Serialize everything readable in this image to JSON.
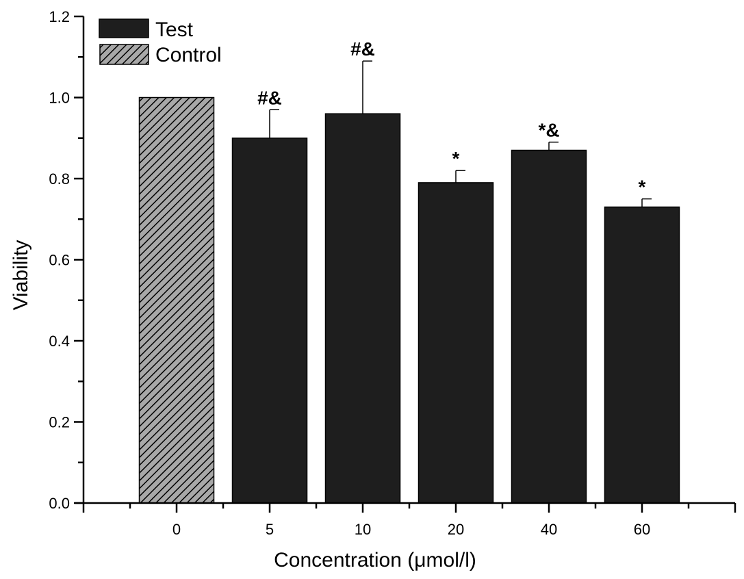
{
  "chart_data": {
    "type": "bar",
    "title": "",
    "xlabel": "Concentration (μmol/l)",
    "ylabel": "Viability",
    "categories": [
      "0",
      "5",
      "10",
      "20",
      "40",
      "60"
    ],
    "series": [
      {
        "name": "Control",
        "values": [
          1.0,
          null,
          null,
          null,
          null,
          null
        ],
        "errors": [
          0,
          null,
          null,
          null,
          null,
          null
        ],
        "pattern": "hatch"
      },
      {
        "name": "Test",
        "values": [
          null,
          0.9,
          0.96,
          0.79,
          0.87,
          0.73
        ],
        "errors": [
          null,
          0.07,
          0.13,
          0.03,
          0.02,
          0.02
        ],
        "pattern": "solid"
      }
    ],
    "annotations": [
      "",
      "#&",
      "#&",
      "*",
      "*&",
      "*"
    ],
    "ylim": [
      0,
      1.2
    ],
    "yticks": [
      "0.0",
      "0.2",
      "0.4",
      "0.6",
      "0.8",
      "1.0",
      "1.2"
    ],
    "grid": false,
    "legend": {
      "placement": "top-left",
      "entries": [
        "Test",
        "Control"
      ]
    },
    "colors": {
      "test": "#1e1e1e",
      "control_bg": "#a8a8a8",
      "hatch": "#000000"
    }
  }
}
